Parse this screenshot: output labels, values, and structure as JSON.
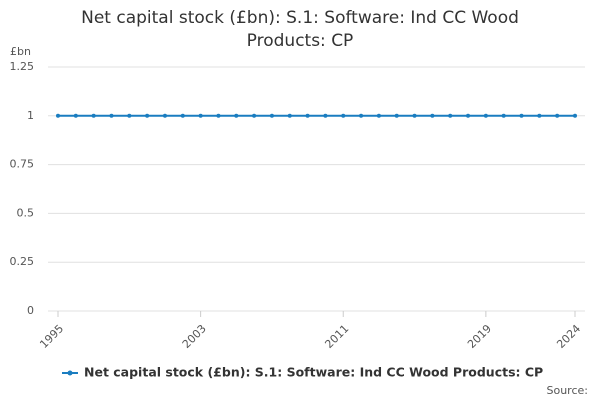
{
  "chart_data": {
    "type": "line",
    "title": "Net capital stock (£bn): S.1: Software: Ind CC Wood Products: CP",
    "y_label": "£bn",
    "source": "Source:",
    "x": [
      1995,
      1996,
      1997,
      1998,
      1999,
      2000,
      2001,
      2002,
      2003,
      2004,
      2005,
      2006,
      2007,
      2008,
      2009,
      2010,
      2011,
      2012,
      2013,
      2014,
      2015,
      2016,
      2017,
      2018,
      2019,
      2020,
      2021,
      2022,
      2023,
      2024
    ],
    "series": [
      {
        "name": "Net capital stock (£bn): S.1: Software: Ind CC Wood Products: CP",
        "color": "#1a7dc0",
        "values": [
          1,
          1,
          1,
          1,
          1,
          1,
          1,
          1,
          1,
          1,
          1,
          1,
          1,
          1,
          1,
          1,
          1,
          1,
          1,
          1,
          1,
          1,
          1,
          1,
          1,
          1,
          1,
          1,
          1,
          1
        ]
      }
    ],
    "xlim": [
      1995,
      2024
    ],
    "xticks": [
      1995,
      2003,
      2011,
      2019,
      2024
    ],
    "ylim": [
      0,
      1.25
    ],
    "yticks": [
      0,
      0.25,
      0.5,
      0.75,
      1,
      1.25
    ],
    "grid": true,
    "legend": "bottom"
  }
}
